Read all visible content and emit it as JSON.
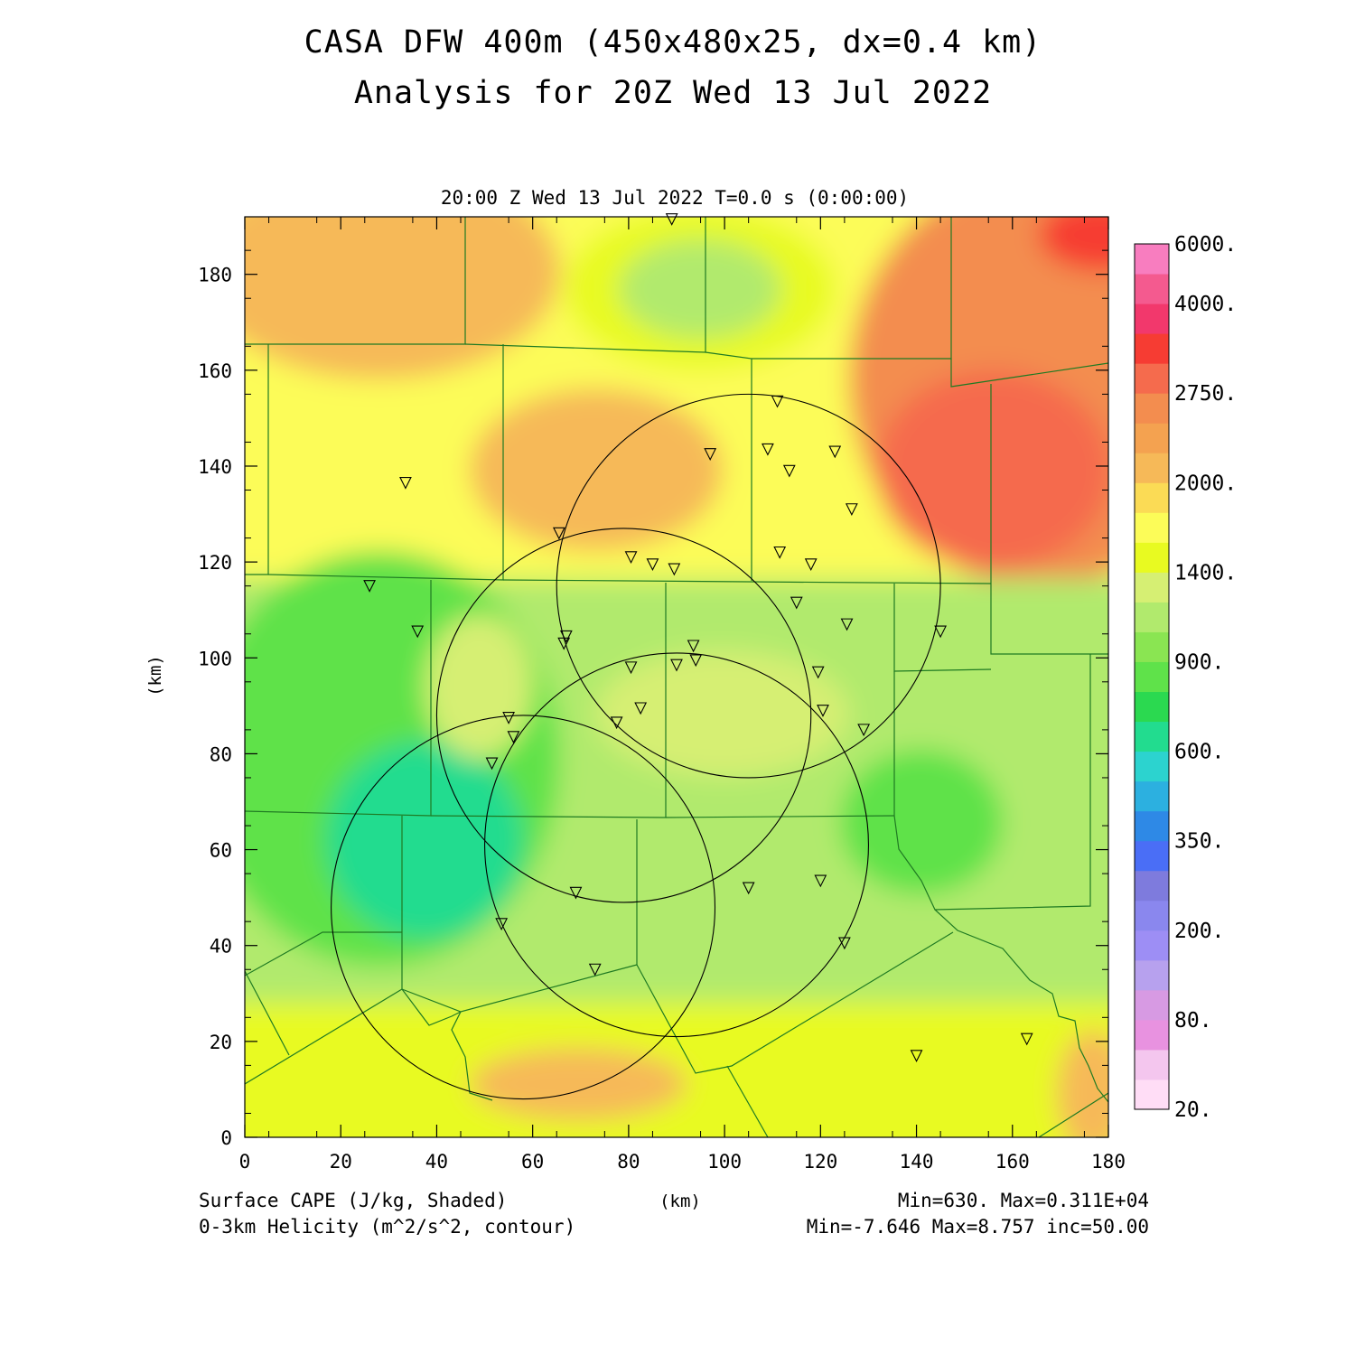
{
  "header": {
    "title_line1": "CASA DFW 400m (450x480x25, dx=0.4 km)",
    "title_line2": "Analysis for 20Z Wed 13 Jul 2022",
    "plot_time": "20:00 Z Wed 13 Jul 2022   T=0.0 s (0:00:00)"
  },
  "axes": {
    "x_unit_label": "(km)",
    "y_unit_label": "(km)",
    "x_ticks": [
      "0",
      "20",
      "40",
      "60",
      "80",
      "100",
      "120",
      "140",
      "160",
      "180"
    ],
    "y_ticks": [
      "0",
      "20",
      "40",
      "60",
      "80",
      "100",
      "120",
      "140",
      "160",
      "180"
    ],
    "x_range": [
      0,
      180
    ],
    "y_range": [
      0,
      192
    ]
  },
  "footer": {
    "field1_label": "Surface CAPE (J/kg, Shaded)",
    "field1_stats": "Min=630. Max=0.311E+04",
    "field2_label": "0-3km Helicity (m^2/s^2, contour)",
    "field2_stats": "Min=-7.646 Max=8.757 inc=50.00"
  },
  "colorbar": {
    "colors": [
      "#ffddf6",
      "#f4c6ee",
      "#e892e0",
      "#d79ae3",
      "#b7a1ee",
      "#9d8ef5",
      "#8a87ee",
      "#7e7bdd",
      "#4a6ef6",
      "#2e89e6",
      "#2cb0e0",
      "#2cd3cf",
      "#22dc8f",
      "#2bd950",
      "#5fe24a",
      "#8ae552",
      "#b1ea6d",
      "#d6ef73",
      "#e8fa21",
      "#fcfc58",
      "#fbdb55",
      "#f6b958",
      "#f4a250",
      "#f38d4f",
      "#f56b4d",
      "#f63c33",
      "#f2386c",
      "#f45a8f",
      "#f87dbf"
    ],
    "labels": [
      {
        "text": "20.",
        "index": 0
      },
      {
        "text": "80.",
        "index": 3
      },
      {
        "text": "200.",
        "index": 6
      },
      {
        "text": "350.",
        "index": 9
      },
      {
        "text": "600.",
        "index": 12
      },
      {
        "text": "900.",
        "index": 15
      },
      {
        "text": "1400.",
        "index": 18
      },
      {
        "text": "2000.",
        "index": 21
      },
      {
        "text": "2750.",
        "index": 24
      },
      {
        "text": "4000.",
        "index": 27
      },
      {
        "text": "6000.",
        "index": 29
      }
    ]
  },
  "radar_rings_km": [
    {
      "cx": 105,
      "cy": 115,
      "r": 40
    },
    {
      "cx": 79,
      "cy": 88,
      "r": 39
    },
    {
      "cx": 90,
      "cy": 61,
      "r": 40
    },
    {
      "cx": 58,
      "cy": 48,
      "r": 40
    }
  ],
  "stations_km": [
    [
      33.5,
      136.5
    ],
    [
      26,
      115
    ],
    [
      36,
      105.5
    ],
    [
      65.5,
      126
    ],
    [
      67,
      104.5
    ],
    [
      66.5,
      103
    ],
    [
      80.5,
      121
    ],
    [
      85,
      119.5
    ],
    [
      89.5,
      118.5
    ],
    [
      97,
      142.5
    ],
    [
      111,
      153.5
    ],
    [
      109,
      143.5
    ],
    [
      113.5,
      139
    ],
    [
      123,
      143
    ],
    [
      126.5,
      131
    ],
    [
      111.5,
      122
    ],
    [
      118,
      119.5
    ],
    [
      115,
      111.5
    ],
    [
      125.5,
      107
    ],
    [
      145,
      105.5
    ],
    [
      93.5,
      102.5
    ],
    [
      94,
      99.5
    ],
    [
      90,
      98.5
    ],
    [
      80.5,
      98
    ],
    [
      82.5,
      89.5
    ],
    [
      77.5,
      86.5
    ],
    [
      119.5,
      97
    ],
    [
      120.5,
      89
    ],
    [
      129,
      85
    ],
    [
      55,
      87.5
    ],
    [
      56,
      83.5
    ],
    [
      51.5,
      78
    ],
    [
      69,
      51
    ],
    [
      53.5,
      44.5
    ],
    [
      73,
      35
    ],
    [
      105,
      52
    ],
    [
      120,
      53.5
    ],
    [
      125,
      40.5
    ],
    [
      140,
      17
    ],
    [
      163,
      20.5
    ],
    [
      89,
      191.5
    ]
  ]
}
